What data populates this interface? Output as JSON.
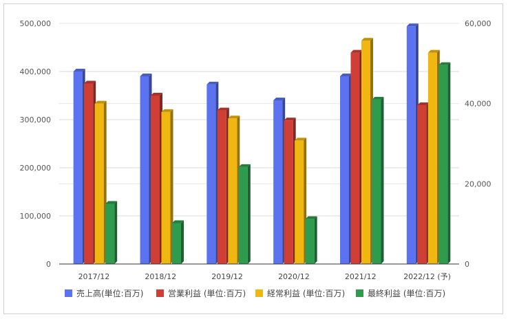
{
  "chart_data": {
    "type": "bar",
    "categories": [
      "2017/12",
      "2018/12",
      "2019/12",
      "2020/12",
      "2021/12",
      "2022/12 (予)"
    ],
    "series": [
      {
        "name": "売上高(単位:百万)",
        "axis": "left",
        "color": "#5b73f0",
        "values": [
          400000,
          390000,
          373000,
          340000,
          390000,
          494000
        ]
      },
      {
        "name": "営業利益 (単位:百万)",
        "axis": "right",
        "color": "#cf3f36",
        "values": [
          45000,
          42000,
          38300,
          35800,
          52700,
          39600
        ]
      },
      {
        "name": "経常利益 (単位:百万)",
        "axis": "right",
        "color": "#f0b711",
        "values": [
          40000,
          37900,
          36300,
          30800,
          55700,
          52700
        ]
      },
      {
        "name": "最終利益 (単位:百万)",
        "axis": "right",
        "color": "#2f9b4f",
        "values": [
          15000,
          10200,
          24200,
          11200,
          41000,
          49600
        ]
      }
    ],
    "y_left": {
      "min": 0,
      "max": 500000,
      "ticks": [
        "0",
        "100,000",
        "200,000",
        "300,000",
        "400,000",
        "500,000"
      ]
    },
    "y_right": {
      "min": 0,
      "max": 60000,
      "ticks": [
        "0",
        "20,000",
        "40,000",
        "60,000"
      ]
    },
    "grid": true,
    "legend_position": "bottom"
  }
}
